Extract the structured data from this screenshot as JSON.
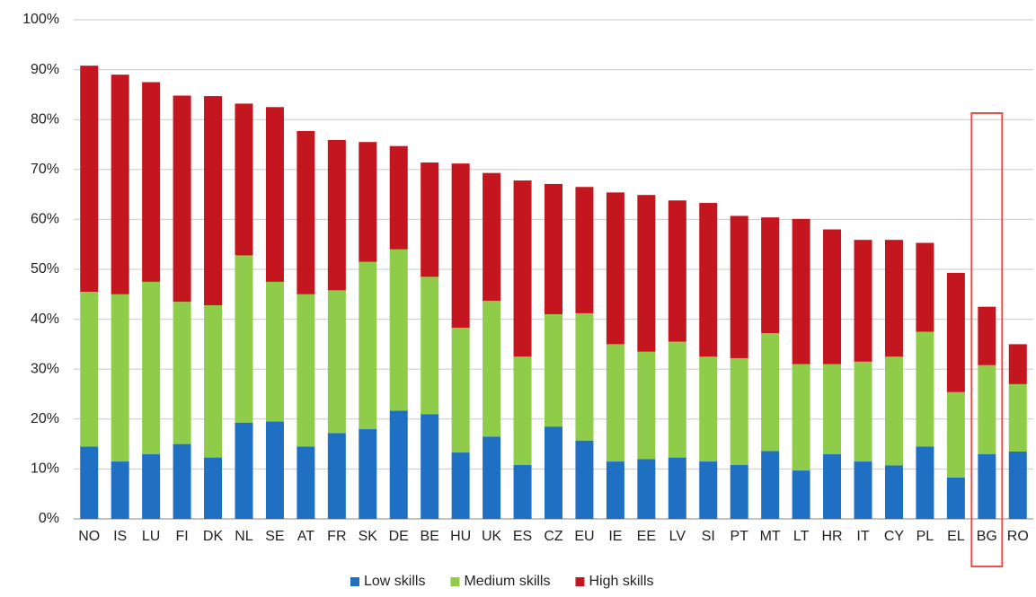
{
  "chart_data": {
    "type": "stacked_bar",
    "categories": [
      "NO",
      "IS",
      "LU",
      "FI",
      "DK",
      "NL",
      "SE",
      "AT",
      "FR",
      "SK",
      "DE",
      "BE",
      "HU",
      "UK",
      "ES",
      "CZ",
      "EU",
      "IE",
      "EE",
      "LV",
      "SI",
      "PT",
      "MT",
      "LT",
      "HR",
      "IT",
      "CY",
      "PL",
      "EL",
      "BG",
      "RO"
    ],
    "series": [
      {
        "name": "Low skills",
        "color": "#1f6fc2",
        "values": [
          14.5,
          11.5,
          13,
          15,
          12.3,
          19.3,
          19.5,
          14.5,
          17.2,
          18,
          21.7,
          21,
          13.3,
          16.5,
          10.8,
          18.5,
          15.7,
          11.5,
          12,
          12.3,
          11.5,
          10.8,
          13.6,
          9.7,
          13,
          11.5,
          10.7,
          14.5,
          8.3,
          13,
          13.5
        ]
      },
      {
        "name": "Medium skills",
        "color": "#8fcc4a",
        "values": [
          31,
          33.5,
          34.5,
          28.5,
          30.5,
          33.5,
          28,
          30.5,
          28.6,
          33.5,
          32.3,
          27.5,
          25,
          27.2,
          21.7,
          22.5,
          25.5,
          23.5,
          21.5,
          23.2,
          21,
          21.4,
          23.6,
          21.3,
          18,
          20,
          21.8,
          23,
          17.1,
          17.8,
          13.5
        ]
      },
      {
        "name": "High skills",
        "color": "#c3161e",
        "values": [
          45.3,
          44,
          40,
          41.3,
          41.9,
          30.4,
          35,
          32.7,
          30.1,
          24,
          20.7,
          22.9,
          32.9,
          25.6,
          35.3,
          26.1,
          25.3,
          30.4,
          31.4,
          28.3,
          30.8,
          28.5,
          23.2,
          29.1,
          27,
          24.4,
          23.4,
          17.8,
          23.9,
          11.7,
          8
        ]
      }
    ],
    "ylim": [
      0,
      100
    ],
    "yticks": [
      {
        "value": 0,
        "label": "0%"
      },
      {
        "value": 10,
        "label": "10%"
      },
      {
        "value": 20,
        "label": "20%"
      },
      {
        "value": 30,
        "label": "30%"
      },
      {
        "value": 40,
        "label": "40%"
      },
      {
        "value": 50,
        "label": "50%"
      },
      {
        "value": 60,
        "label": "60%"
      },
      {
        "value": 70,
        "label": "70%"
      },
      {
        "value": 80,
        "label": "80%"
      },
      {
        "value": 90,
        "label": "90%"
      },
      {
        "value": 100,
        "label": "100%"
      }
    ],
    "grid": true,
    "legend": "bottom"
  }
}
